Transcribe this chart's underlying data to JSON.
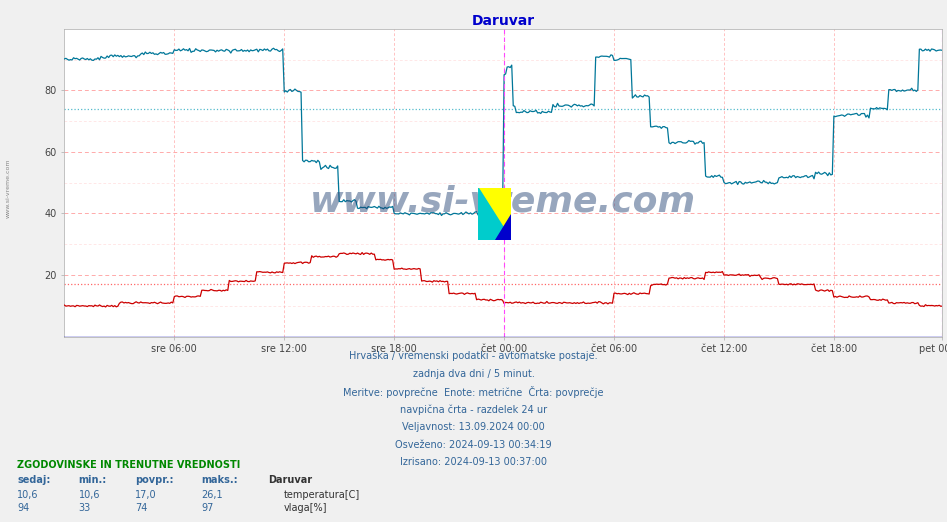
{
  "title": "Daruvar",
  "title_color": "#0000cc",
  "bg_color": "#f0f0f0",
  "plot_bg_color": "#ffffff",
  "grid_color_major": "#ffaaaa",
  "grid_color_minor": "#ffdddd",
  "x_labels": [
    "sre 06:00",
    "sre 12:00",
    "sre 18:00",
    "čet 00:00",
    "čet 06:00",
    "čet 12:00",
    "čet 18:00",
    "pet 00:00"
  ],
  "y_min": 0,
  "y_max": 100,
  "temp_color": "#cc0000",
  "humidity_color": "#007799",
  "avg_temp_line": 17.0,
  "avg_humidity_line": 74.0,
  "avg_line_color_temp": "#ff6666",
  "avg_line_color_humidity": "#55bbcc",
  "vline_color": "#ff44ff",
  "subtitle_lines": [
    "Hrvaška / vremenski podatki - avtomatske postaje.",
    "zadnja dva dni / 5 minut.",
    "Meritve: povprečne  Enote: metrične  Črta: povprečje",
    "navpična črta - razdelek 24 ur",
    "Veljavnost: 13.09.2024 00:00",
    "Osveženo: 2024-09-13 00:34:19",
    "Izrisano: 2024-09-13 00:37:00"
  ],
  "footer_title": "ZGODOVINSKE IN TRENUTNE VREDNOSTI",
  "table_headers": [
    "sedaj:",
    "min.:",
    "povpr.:",
    "maks.:"
  ],
  "station_name": "Daruvar",
  "temp_row": [
    "10,6",
    "10,6",
    "17,0",
    "26,1"
  ],
  "humidity_row": [
    "94",
    "33",
    "74",
    "97"
  ],
  "temp_label": "temperatura[C]",
  "humidity_label": "vlaga[%]",
  "watermark": "www.si-vreme.com",
  "watermark_color": "#1a3a6e",
  "sidebar_text": "www.si-vreme.com",
  "sidebar_color": "#888888"
}
